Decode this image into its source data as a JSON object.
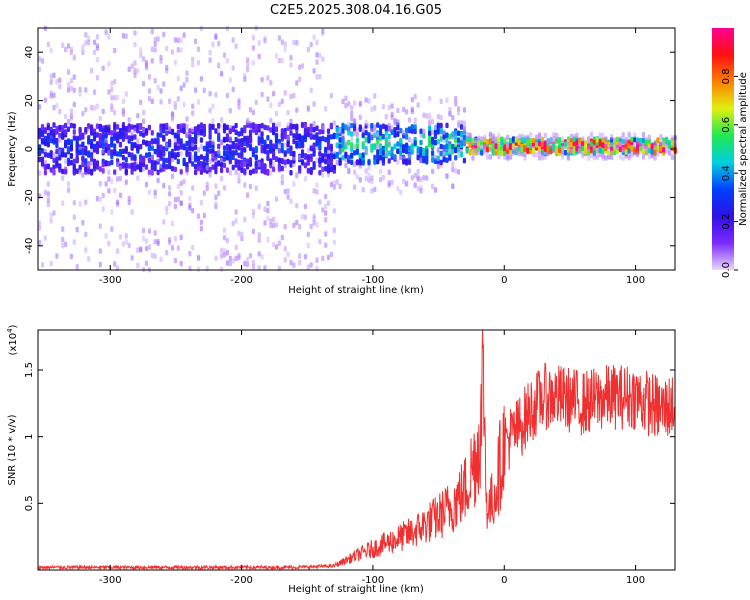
{
  "title": "C2E5.2025.308.04.16.G05",
  "chart_data": [
    {
      "type": "heatmap",
      "title": "C2E5.2025.308.04.16.G05",
      "xlabel": "Height of straight line (km)",
      "ylabel": "Frequency (Hz)",
      "xlim": [
        -355,
        130
      ],
      "ylim": [
        -50,
        50
      ],
      "xticks": [
        -300,
        -200,
        -100,
        0,
        100
      ],
      "yticks": [
        -40,
        -20,
        0,
        20,
        40
      ],
      "colorbar": {
        "label": "Normalized spectral amplitude",
        "range": [
          0,
          1
        ],
        "ticks": [
          0.0,
          0.2,
          0.4,
          0.6,
          0.8
        ],
        "colors": [
          "#e9d8fb",
          "#7b2cff",
          "#2f10e6",
          "#0040ff",
          "#00d0e0",
          "#20e850",
          "#e0f010",
          "#ff8000",
          "#ff1010",
          "#ff0090"
        ]
      },
      "bands": [
        {
          "x_from": -355,
          "x_to": -130,
          "center_freq": 0,
          "core_halfwidth": 10,
          "scatter_halfwidth": 50,
          "peak_amplitude": 0.3
        },
        {
          "x_from": -130,
          "x_to": -30,
          "center_freq": 2,
          "core_halfwidth": 8,
          "scatter_halfwidth": 20,
          "peak_amplitude": 0.5
        },
        {
          "x_from": -30,
          "x_to": 130,
          "center_freq": 1,
          "core_halfwidth": 3,
          "scatter_halfwidth": 5,
          "peak_amplitude": 0.95
        }
      ]
    },
    {
      "type": "line",
      "xlabel": "Height of straight line (km)",
      "ylabel": "SNR (10 * v/v)",
      "multiplier_label": "(x10",
      "multiplier_exp": "4",
      "xlim": [
        -355,
        130
      ],
      "ylim": [
        0,
        1.8
      ],
      "xticks": [
        -300,
        -200,
        -100,
        0,
        100
      ],
      "yticks": [
        0.5,
        1,
        1.5
      ],
      "color": "#f03030",
      "series": [
        {
          "name": "SNR",
          "x": [
            -355,
            -300,
            -250,
            -200,
            -160,
            -130,
            -110,
            -90,
            -70,
            -50,
            -40,
            -30,
            -25,
            -20,
            -17,
            -16,
            -14,
            -12,
            -8,
            0,
            10,
            20,
            30,
            40,
            60,
            80,
            100,
            120,
            130
          ],
          "y": [
            0.02,
            0.02,
            0.02,
            0.02,
            0.02,
            0.03,
            0.12,
            0.2,
            0.28,
            0.4,
            0.48,
            0.6,
            0.75,
            0.9,
            1.2,
            1.78,
            0.6,
            0.45,
            0.55,
            0.95,
            1.05,
            1.2,
            1.3,
            1.3,
            1.25,
            1.3,
            1.3,
            1.2,
            1.25
          ]
        }
      ]
    }
  ]
}
